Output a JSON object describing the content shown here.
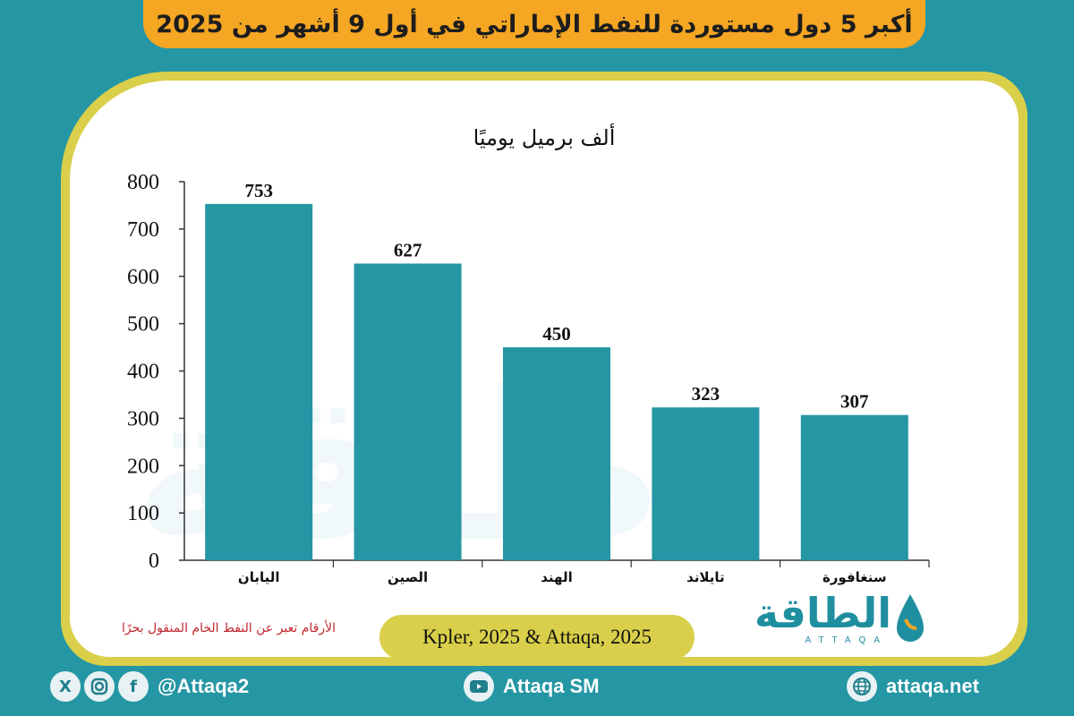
{
  "title": "أكبر 5 دول مستوردة للنفط الإماراتي في أول 9 أشهر من 2025",
  "unit": "ألف برميل يوميًا",
  "footnote": "الأرقام تعبر عن النفط الخام المنقول بحرًا",
  "source": "Kpler, 2025 & Attaqa, 2025",
  "logo": {
    "name": "الطاقة",
    "sub": "ATTAQA"
  },
  "footer": {
    "handle": "@Attaqa2",
    "youtube": "Attaqa SM",
    "website": "attaqa.net"
  },
  "colors": {
    "bar": "#2596a4",
    "background": "#2596a4",
    "accent": "#f5a623",
    "border": "#d9cf4a"
  },
  "chart_data": {
    "type": "bar",
    "categories": [
      "اليابان",
      "الصين",
      "الهند",
      "تايلاند",
      "سنغافورة"
    ],
    "values": [
      753,
      627,
      450,
      323,
      307
    ],
    "title": "",
    "ylabel": "ألف برميل يوميًا",
    "xlabel": "",
    "ylim": [
      0,
      800
    ],
    "yticks": [
      0,
      100,
      200,
      300,
      400,
      500,
      600,
      700,
      800
    ],
    "grid": false,
    "data_labels": true
  }
}
